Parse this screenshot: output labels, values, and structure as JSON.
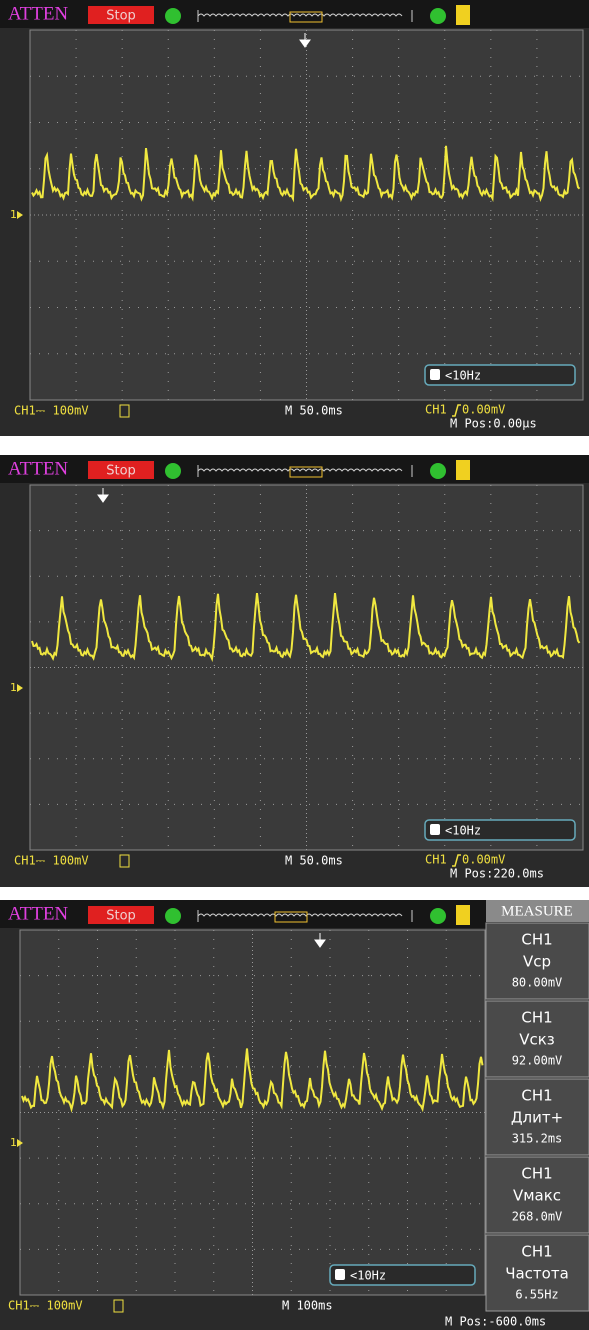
{
  "screens": [
    {
      "header": {
        "brand": "ATTEN",
        "state": "Stop"
      },
      "trigger_marker": "1",
      "frequency": "<10Hz",
      "footer": {
        "channel_scale": "CH1⎓ 100mV",
        "timebase": "M 50.0ms",
        "trigger": "CH1",
        "trigger_level": "0.00mV",
        "position": "M Pos:0.00μs"
      }
    },
    {
      "header": {
        "brand": "ATTEN",
        "state": "Stop"
      },
      "trigger_marker": "1",
      "frequency": "<10Hz",
      "footer": {
        "channel_scale": "CH1⎓ 100mV",
        "timebase": "M 50.0ms",
        "trigger": "CH1",
        "trigger_level": "0.00mV",
        "position": "M Pos:220.0ms"
      }
    },
    {
      "header": {
        "brand": "ATTEN",
        "state": "Stop"
      },
      "trigger_marker": "1",
      "frequency": "<10Hz",
      "footer": {
        "channel_scale": "CH1⎓ 100mV",
        "timebase": "M 100ms",
        "position": "M Pos:-600.0ms"
      }
    }
  ],
  "measure": {
    "title": "MEASURE",
    "items": [
      {
        "channel": "CH1",
        "label": "Vcp",
        "value": "80.00mV"
      },
      {
        "channel": "CH1",
        "label": "Vcкз",
        "value": "92.00mV"
      },
      {
        "channel": "CH1",
        "label": "Длит+",
        "value": "315.2ms"
      },
      {
        "channel": "CH1",
        "label": "Vмакс",
        "value": "268.0mV"
      },
      {
        "channel": "CH1",
        "label": "Частота",
        "value": "6.55Hz"
      }
    ]
  }
}
